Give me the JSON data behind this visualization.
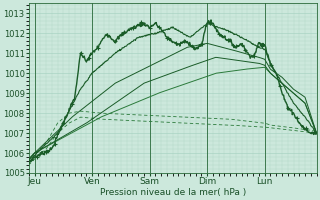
{
  "title": "",
  "xlabel": "Pression niveau de la mer( hPa )",
  "ylabel": "",
  "ylim": [
    1005,
    1013.5
  ],
  "xlim": [
    0,
    100
  ],
  "yticks": [
    1005,
    1006,
    1007,
    1008,
    1009,
    1010,
    1011,
    1012,
    1013
  ],
  "xtick_positions": [
    2,
    22,
    42,
    62,
    82
  ],
  "xtick_labels": [
    "Jeu",
    "Ven",
    "Sam",
    "Dim",
    "Lun"
  ],
  "vlines": [
    2,
    22,
    42,
    62,
    82
  ],
  "bg_color": "#cce8dc",
  "grid_color": "#aad4c4",
  "line_color_dark": "#1a5c28",
  "line_color_mid": "#2a7a3a"
}
